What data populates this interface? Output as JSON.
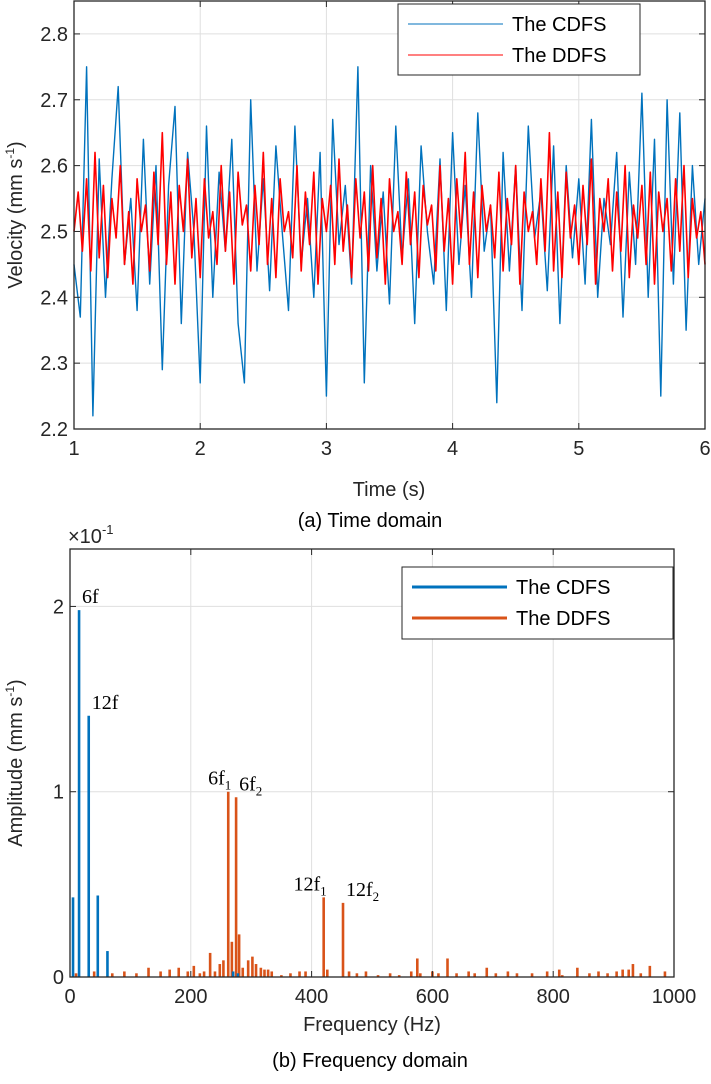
{
  "chart_data": [
    {
      "type": "line",
      "caption": "(a) Time domain",
      "xlabel": "Time (s)",
      "ylabel": "Velocity (mm s",
      "ylabel_sup": "-1",
      "ylabel_end": ")",
      "xlim": [
        1,
        6
      ],
      "ylim": [
        2.2,
        2.85
      ],
      "xticks": [
        "1",
        "2",
        "3",
        "4",
        "5",
        "6"
      ],
      "yticks": [
        "2.2",
        "2.3",
        "2.4",
        "2.5",
        "2.6",
        "2.7",
        "2.8"
      ],
      "grid": true,
      "legend_position": "top-right",
      "series": [
        {
          "name": "The CDFS",
          "color": "#0072BD",
          "values": [
            2.45,
            2.37,
            2.75,
            2.22,
            2.61,
            2.4,
            2.58,
            2.72,
            2.45,
            2.55,
            2.38,
            2.64,
            2.42,
            2.6,
            2.29,
            2.57,
            2.69,
            2.36,
            2.62,
            2.5,
            2.27,
            2.66,
            2.4,
            2.59,
            2.47,
            2.64,
            2.36,
            2.27,
            2.7,
            2.44,
            2.58,
            2.41,
            2.63,
            2.5,
            2.38,
            2.66,
            2.45,
            2.55,
            2.4,
            2.62,
            2.25,
            2.67,
            2.48,
            2.57,
            2.42,
            2.75,
            2.27,
            2.6,
            2.44,
            2.56,
            2.39,
            2.66,
            2.46,
            2.58,
            2.36,
            2.63,
            2.5,
            2.42,
            2.61,
            2.38,
            2.65,
            2.45,
            2.57,
            2.4,
            2.68,
            2.47,
            2.54,
            2.24,
            2.62,
            2.44,
            2.6,
            2.38,
            2.66,
            2.49,
            2.56,
            2.41,
            2.63,
            2.36,
            2.6,
            2.46,
            2.58,
            2.42,
            2.67,
            2.4,
            2.55,
            2.48,
            2.62,
            2.37,
            2.59,
            2.45,
            2.71,
            2.4,
            2.64,
            2.25,
            2.7,
            2.42,
            2.68,
            2.35,
            2.6,
            2.45,
            2.55
          ]
        },
        {
          "name": "The DDFS",
          "color": "#FF0000",
          "values": [
            2.5,
            2.56,
            2.47,
            2.58,
            2.44,
            2.62,
            2.46,
            2.57,
            2.43,
            2.55,
            2.49,
            2.6,
            2.45,
            2.53,
            2.42,
            2.58,
            2.5,
            2.54,
            2.44,
            2.59,
            2.48,
            2.65,
            2.45,
            2.56,
            2.42,
            2.57,
            2.5,
            2.61,
            2.46,
            2.55,
            2.43,
            2.58,
            2.49,
            2.53,
            2.45,
            2.6,
            2.47,
            2.56,
            2.42,
            2.59,
            2.51,
            2.54,
            2.44,
            2.57,
            2.48,
            2.62,
            2.45,
            2.55,
            2.43,
            2.58,
            2.5,
            2.53,
            2.46,
            2.6,
            2.44,
            2.56,
            2.48,
            2.59,
            2.42,
            2.55,
            2.5,
            2.57,
            2.45,
            2.61,
            2.47,
            2.54,
            2.43,
            2.58,
            2.49,
            2.56,
            2.44,
            2.6,
            2.46,
            2.55,
            2.42,
            2.58,
            2.5,
            2.53,
            2.45,
            2.59,
            2.48,
            2.56,
            2.43,
            2.57,
            2.51,
            2.54,
            2.44,
            2.6,
            2.47,
            2.55,
            2.42,
            2.58,
            2.49,
            2.62,
            2.45,
            2.56,
            2.43,
            2.57,
            2.5,
            2.54,
            2.46,
            2.59,
            2.44,
            2.55,
            2.48,
            2.6,
            2.42,
            2.56,
            2.5,
            2.53,
            2.45,
            2.58,
            2.47,
            2.65,
            2.44,
            2.56,
            2.43,
            2.59,
            2.49,
            2.54,
            2.45,
            2.57,
            2.48,
            2.61,
            2.42,
            2.55,
            2.5,
            2.58,
            2.44,
            2.56,
            2.47,
            2.6,
            2.43,
            2.54,
            2.49,
            2.57,
            2.45,
            2.59,
            2.42,
            2.56,
            2.5,
            2.55,
            2.44,
            2.58,
            2.47,
            2.6,
            2.43,
            2.55,
            2.49,
            2.53,
            2.45
          ]
        }
      ]
    },
    {
      "type": "bar",
      "caption": "(b) Frequency domain",
      "xlabel": "Frequency (Hz)",
      "ylabel": "Amplitude (mm s",
      "ylabel_sup": "-1",
      "ylabel_end": ")",
      "y_exponent_label": "×10",
      "y_exponent": "-1",
      "xlim": [
        0,
        1000
      ],
      "ylim": [
        0,
        2.31
      ],
      "xticks": [
        "0",
        "200",
        "400",
        "600",
        "800",
        "1000"
      ],
      "yticks": [
        "0",
        "1",
        "2"
      ],
      "grid": true,
      "legend_position": "top-right",
      "series": [
        {
          "name": "The CDFS",
          "color": "#0072BD",
          "bars": [
            [
              5,
              0.43
            ],
            [
              15,
              1.98
            ],
            [
              31,
              1.41
            ],
            [
              46,
              0.44
            ],
            [
              62,
              0.14
            ],
            [
              270,
              0.03
            ],
            [
              278,
              0.02
            ]
          ]
        },
        {
          "name": "The DDFS",
          "color": "#D95319",
          "bars": [
            [
              10,
              0.02
            ],
            [
              40,
              0.03
            ],
            [
              70,
              0.02
            ],
            [
              90,
              0.03
            ],
            [
              110,
              0.02
            ],
            [
              130,
              0.05
            ],
            [
              150,
              0.03
            ],
            [
              165,
              0.04
            ],
            [
              180,
              0.05
            ],
            [
              195,
              0.03
            ],
            [
              205,
              0.06
            ],
            [
              215,
              0.02
            ],
            [
              222,
              0.03
            ],
            [
              232,
              0.13
            ],
            [
              240,
              0.03
            ],
            [
              248,
              0.07
            ],
            [
              254,
              0.09
            ],
            [
              262,
              1.0
            ],
            [
              268,
              0.19
            ],
            [
              275,
              0.97
            ],
            [
              280,
              0.23
            ],
            [
              286,
              0.05
            ],
            [
              295,
              0.09
            ],
            [
              302,
              0.11
            ],
            [
              308,
              0.07
            ],
            [
              316,
              0.05
            ],
            [
              322,
              0.04
            ],
            [
              328,
              0.04
            ],
            [
              334,
              0.03
            ],
            [
              350,
              0.01
            ],
            [
              365,
              0.02
            ],
            [
              380,
              0.03
            ],
            [
              390,
              0.03
            ],
            [
              420,
              0.43
            ],
            [
              426,
              0.04
            ],
            [
              452,
              0.4
            ],
            [
              462,
              0.03
            ],
            [
              475,
              0.02
            ],
            [
              490,
              0.03
            ],
            [
              510,
              0.01
            ],
            [
              530,
              0.02
            ],
            [
              545,
              0.01
            ],
            [
              565,
              0.03
            ],
            [
              575,
              0.1
            ],
            [
              580,
              0.02
            ],
            [
              600,
              0.03
            ],
            [
              610,
              0.02
            ],
            [
              625,
              0.1
            ],
            [
              640,
              0.02
            ],
            [
              660,
              0.03
            ],
            [
              670,
              0.02
            ],
            [
              690,
              0.05
            ],
            [
              705,
              0.02
            ],
            [
              725,
              0.03
            ],
            [
              740,
              0.02
            ],
            [
              765,
              0.02
            ],
            [
              790,
              0.03
            ],
            [
              810,
              0.04
            ],
            [
              815,
              0.01
            ],
            [
              840,
              0.05
            ],
            [
              860,
              0.02
            ],
            [
              875,
              0.03
            ],
            [
              890,
              0.02
            ],
            [
              905,
              0.03
            ],
            [
              915,
              0.04
            ],
            [
              925,
              0.04
            ],
            [
              932,
              0.07
            ],
            [
              945,
              0.02
            ],
            [
              960,
              0.06
            ],
            [
              985,
              0.03
            ]
          ]
        }
      ],
      "annotations": [
        {
          "text": "6f",
          "sub": "",
          "x": 15,
          "y": 1.98
        },
        {
          "text": "12f",
          "sub": "",
          "x": 31,
          "y": 1.41
        },
        {
          "text": "6f",
          "sub": "1",
          "x": 262,
          "y": 1.0
        },
        {
          "text": "6f",
          "sub": "2",
          "x": 275,
          "y": 0.97
        },
        {
          "text": "12f",
          "sub": "1",
          "x": 420,
          "y": 0.43
        },
        {
          "text": "12f",
          "sub": "2",
          "x": 452,
          "y": 0.4
        }
      ]
    }
  ]
}
